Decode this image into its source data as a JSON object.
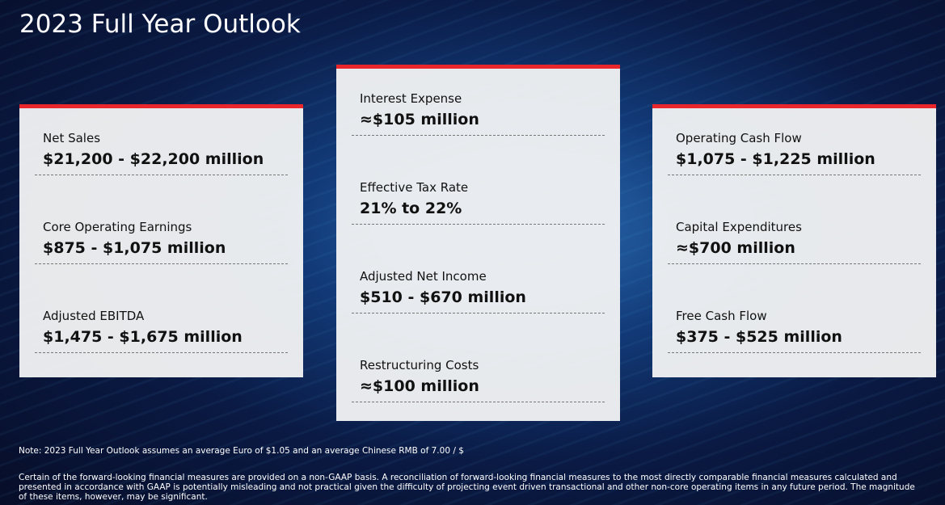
{
  "title": "2023 Full Year Outlook",
  "panels": [
    {
      "items": [
        {
          "label": "Net Sales",
          "value": "$21,200 - $22,200 million"
        },
        {
          "label": "Core Operating Earnings",
          "value": "$875 - $1,075 million"
        },
        {
          "label": "Adjusted EBITDA",
          "value": "$1,475 - $1,675 million"
        }
      ]
    },
    {
      "items": [
        {
          "label": "Interest Expense",
          "value": "≈$105 million"
        },
        {
          "label": "Effective Tax Rate",
          "value": "21% to 22%"
        },
        {
          "label": "Adjusted Net Income",
          "value": "$510 - $670 million"
        },
        {
          "label": "Restructuring Costs",
          "value": "≈$100 million"
        }
      ]
    },
    {
      "items": [
        {
          "label": "Operating Cash Flow",
          "value": "$1,075 - $1,225 million"
        },
        {
          "label": "Capital Expenditures",
          "value": "≈$700 million"
        },
        {
          "label": "Free Cash Flow",
          "value": "$375 - $525 million"
        }
      ]
    }
  ],
  "note": "Note: 2023 Full Year Outlook assumes an average Euro of $1.05 and an average Chinese RMB of 7.00 / $",
  "disclaimer": "Certain of the forward-looking financial measures are provided on a non-GAAP basis. A reconciliation of forward-looking financial measures to the most directly comparable financial measures calculated and presented in accordance with GAAP is potentially misleading and not practical given the difficulty of projecting event driven transactional and other non-core operating items in any future period. The magnitude of these items, however, may be significant."
}
